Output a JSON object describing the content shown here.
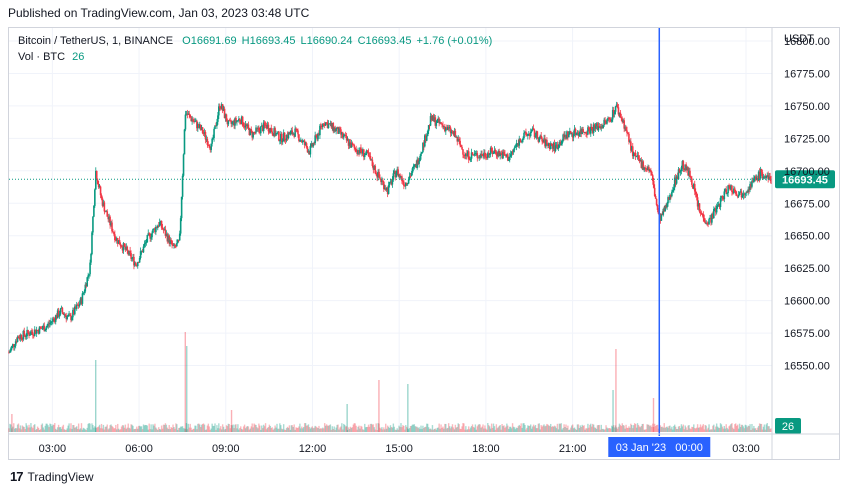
{
  "header": {
    "published": "Published on TradingView.com, Jan 03, 2023 03:48 UTC"
  },
  "legend": {
    "symbol": "Bitcoin / TetherUS, 1, BINANCE",
    "open": "O16691.69",
    "high": "H16693.45",
    "low": "L16690.24",
    "close": "C16693.45",
    "change": "+1.76 (+0.01%)",
    "volume_label": "Vol · BTC",
    "volume_value": "26"
  },
  "axis": {
    "currency": "USDT",
    "last_price_label": "16693.45",
    "last_volume_label": "26",
    "crosshair_label": "03 Jan '23   00:00"
  },
  "footer": {
    "brand": "TradingView",
    "logo": "17"
  },
  "colors": {
    "up": "#089981",
    "down": "#f23645",
    "crosshair": "#2962ff",
    "grid": "#f0f3fa"
  },
  "chart_data": {
    "type": "candlestick",
    "symbol": "BTCUSDT",
    "interval": "1",
    "y_ticks": [
      16550,
      16575,
      16600,
      16625,
      16650,
      16675,
      16700,
      16725,
      16750,
      16775,
      16800
    ],
    "ylim": [
      16525,
      16810
    ],
    "x_tick_labels": [
      "03:00",
      "06:00",
      "09:00",
      "12:00",
      "15:00",
      "18:00",
      "21:00",
      "03:00"
    ],
    "x_tick_hours": [
      3,
      6,
      9,
      12,
      15,
      18,
      21,
      27
    ],
    "xlim_hours": [
      1.5,
      27.9
    ],
    "crosshair_hour": 24,
    "last_price": 16693.45,
    "price_path": [
      [
        1.5,
        16560
      ],
      [
        1.8,
        16572
      ],
      [
        2.2,
        16575
      ],
      [
        2.8,
        16580
      ],
      [
        3.3,
        16592
      ],
      [
        3.6,
        16586
      ],
      [
        4.0,
        16600
      ],
      [
        4.3,
        16625
      ],
      [
        4.5,
        16700
      ],
      [
        4.7,
        16678
      ],
      [
        4.9,
        16665
      ],
      [
        5.2,
        16648
      ],
      [
        5.5,
        16640
      ],
      [
        5.9,
        16628
      ],
      [
        6.3,
        16648
      ],
      [
        6.7,
        16660
      ],
      [
        7.0,
        16648
      ],
      [
        7.2,
        16640
      ],
      [
        7.4,
        16645
      ],
      [
        7.6,
        16745
      ],
      [
        7.9,
        16738
      ],
      [
        8.2,
        16730
      ],
      [
        8.5,
        16718
      ],
      [
        8.8,
        16752
      ],
      [
        9.1,
        16735
      ],
      [
        9.5,
        16740
      ],
      [
        9.9,
        16728
      ],
      [
        10.4,
        16735
      ],
      [
        10.9,
        16725
      ],
      [
        11.4,
        16730
      ],
      [
        11.9,
        16715
      ],
      [
        12.4,
        16738
      ],
      [
        12.9,
        16730
      ],
      [
        13.4,
        16718
      ],
      [
        13.9,
        16712
      ],
      [
        14.3,
        16695
      ],
      [
        14.6,
        16685
      ],
      [
        14.9,
        16700
      ],
      [
        15.2,
        16690
      ],
      [
        15.6,
        16705
      ],
      [
        15.9,
        16725
      ],
      [
        16.1,
        16740
      ],
      [
        16.5,
        16735
      ],
      [
        16.9,
        16728
      ],
      [
        17.3,
        16712
      ],
      [
        17.8,
        16712
      ],
      [
        18.3,
        16715
      ],
      [
        18.8,
        16710
      ],
      [
        19.2,
        16725
      ],
      [
        19.6,
        16730
      ],
      [
        20.0,
        16722
      ],
      [
        20.4,
        16718
      ],
      [
        20.8,
        16728
      ],
      [
        21.2,
        16730
      ],
      [
        21.6,
        16732
      ],
      [
        22.0,
        16735
      ],
      [
        22.3,
        16740
      ],
      [
        22.5,
        16750
      ],
      [
        22.8,
        16735
      ],
      [
        23.1,
        16712
      ],
      [
        23.4,
        16705
      ],
      [
        23.7,
        16700
      ],
      [
        24.0,
        16662
      ],
      [
        24.2,
        16670
      ],
      [
        24.5,
        16690
      ],
      [
        24.8,
        16705
      ],
      [
        25.1,
        16695
      ],
      [
        25.4,
        16668
      ],
      [
        25.7,
        16660
      ],
      [
        26.0,
        16672
      ],
      [
        26.4,
        16688
      ],
      [
        26.8,
        16682
      ],
      [
        27.2,
        16690
      ],
      [
        27.5,
        16698
      ],
      [
        27.8,
        16693
      ]
    ],
    "volume_spikes": [
      [
        4.5,
        0.72
      ],
      [
        7.6,
        1.0
      ],
      [
        7.65,
        0.86
      ],
      [
        9.2,
        0.22
      ],
      [
        13.2,
        0.28
      ],
      [
        14.3,
        0.52
      ],
      [
        15.3,
        0.48
      ],
      [
        22.5,
        0.83
      ],
      [
        22.4,
        0.42
      ],
      [
        23.8,
        0.34
      ],
      [
        24.0,
        0.46
      ],
      [
        1.6,
        0.18
      ]
    ]
  }
}
